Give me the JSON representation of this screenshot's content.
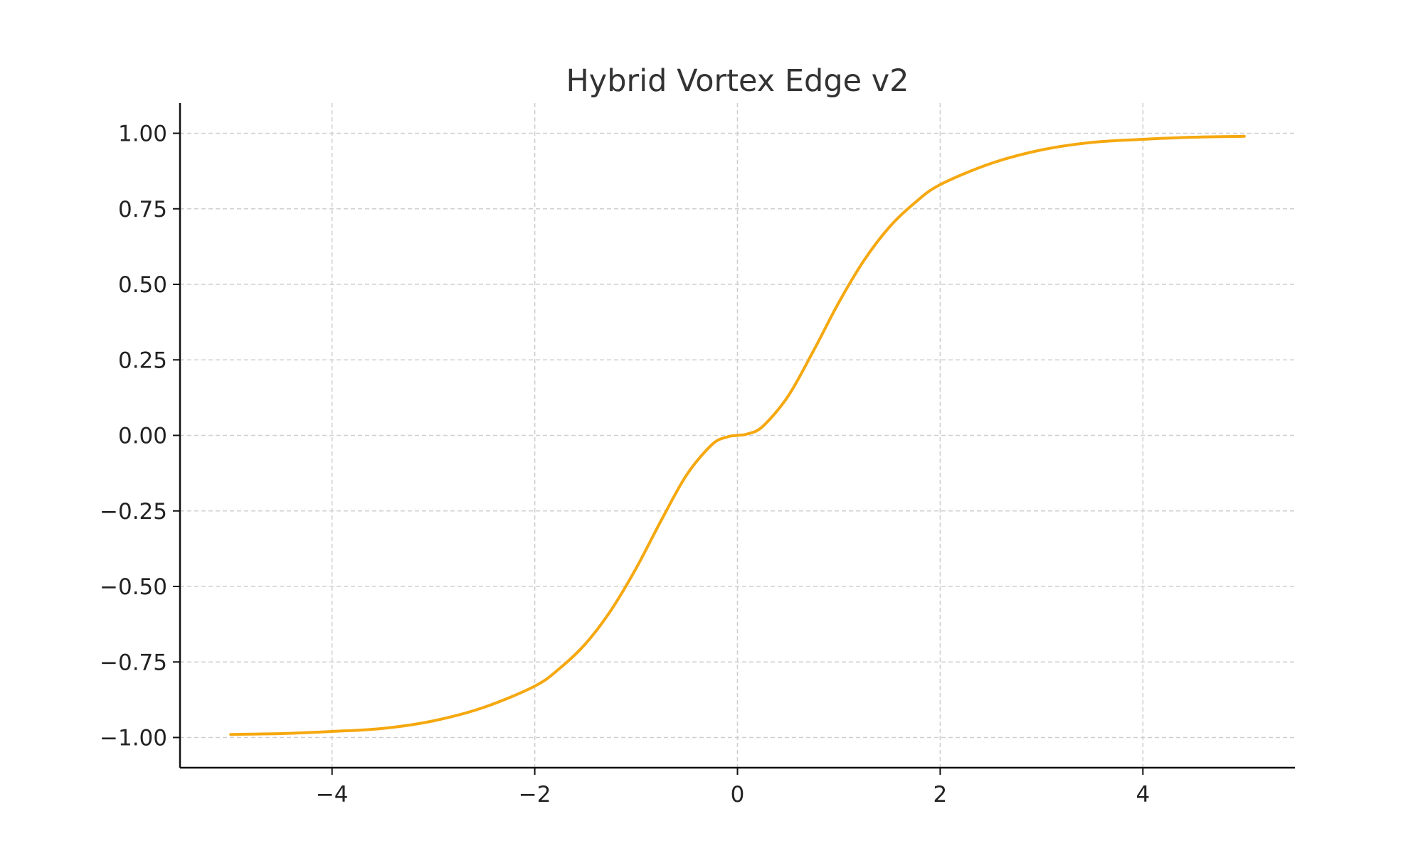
{
  "chart_data": {
    "type": "line",
    "title": "Hybrid Vortex Edge v2",
    "xlabel": "",
    "ylabel": "",
    "xlim": [
      -5.5,
      5.5
    ],
    "ylim": [
      -1.1,
      1.1
    ],
    "x_ticks": [
      -4,
      -2,
      0,
      2,
      4
    ],
    "x_tick_labels": [
      "−4",
      "−2",
      "0",
      "2",
      "4"
    ],
    "y_ticks": [
      1.0,
      0.75,
      0.5,
      0.25,
      0.0,
      -0.25,
      -0.5,
      -0.75,
      -1.0
    ],
    "y_tick_labels": [
      "1.00",
      "0.75",
      "0.50",
      "0.25",
      "0.00",
      "−0.25",
      "−0.50",
      "−0.75",
      "−1.00"
    ],
    "grid": true,
    "legend": false,
    "line_color": "#f5a80f",
    "series": [
      {
        "x": [
          -5.0,
          -4.5,
          -4.0,
          -3.5,
          -3.0,
          -2.5,
          -2.0,
          -1.75,
          -1.5,
          -1.25,
          -1.0,
          -0.75,
          -0.5,
          -0.25,
          -0.1,
          0.0,
          0.1,
          0.25,
          0.5,
          0.75,
          1.0,
          1.25,
          1.5,
          1.75,
          2.0,
          2.5,
          3.0,
          3.5,
          4.0,
          4.5,
          5.0
        ],
        "y": [
          -0.99,
          -0.987,
          -0.98,
          -0.97,
          -0.945,
          -0.9,
          -0.83,
          -0.77,
          -0.69,
          -0.58,
          -0.44,
          -0.28,
          -0.13,
          -0.03,
          -0.005,
          0.0,
          0.005,
          0.03,
          0.13,
          0.28,
          0.44,
          0.58,
          0.69,
          0.77,
          0.83,
          0.9,
          0.945,
          0.97,
          0.98,
          0.987,
          0.99
        ]
      }
    ]
  }
}
